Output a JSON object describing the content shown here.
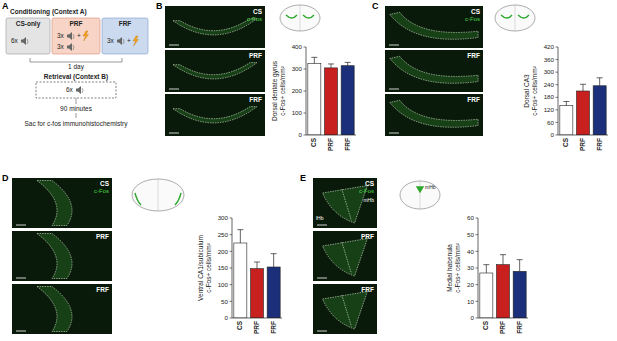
{
  "panel_labels": [
    "A",
    "B",
    "C",
    "D",
    "E"
  ],
  "schematic": {
    "conditioning": "Conditioning (Context A)",
    "groups": [
      {
        "name": "CS-only",
        "rows": [
          {
            "count": "6x"
          }
        ]
      },
      {
        "name": "PRF",
        "rows": [
          {
            "count": "3x",
            "plus": "+"
          },
          {
            "count": "3x"
          }
        ]
      },
      {
        "name": "FRF",
        "rows": [
          {
            "count": "3x",
            "plus": "+"
          }
        ]
      }
    ],
    "interval": "1 day",
    "retrieval": "Retrieval (Context B)",
    "retrieval_trials": "6x",
    "delay": "90 minutes",
    "sac": "Sac for c-fos immunohistochemistry"
  },
  "micrographs": [
    {
      "labels": [
        "CS",
        "PRF",
        "FRF"
      ],
      "stain": "c-Fos"
    },
    {
      "labels": [
        "CS",
        "FRF",
        "FRF"
      ],
      "stain": "c-Fos"
    },
    {
      "labels": [
        "CS",
        "PRF",
        "FRF"
      ],
      "stain": "c-Fos"
    },
    {
      "labels": [
        "CS",
        "PRF",
        "FRF"
      ],
      "stain": "c-Fos",
      "regions": [
        "mHb",
        "lHb"
      ],
      "icon_label": "mHb"
    }
  ],
  "chart_data": [
    {
      "type": "bar",
      "y_label": [
        "Dorsal dentate gyrus",
        "c-Fos+ cells/mm²"
      ],
      "categories": [
        "CS",
        "PRF",
        "FRF"
      ],
      "values": [
        325,
        305,
        315
      ],
      "errors": [
        28,
        18,
        15
      ],
      "colors": [
        "#ffffff",
        "#c8201e",
        "#1b2f7a"
      ],
      "ylim": [
        0,
        400
      ],
      "yticks": [
        0,
        100,
        200,
        300,
        400
      ]
    },
    {
      "type": "bar",
      "y_label": [
        "Dorsal CA3",
        "c-Fos+ cells/mm²"
      ],
      "categories": [
        "CS",
        "PRF",
        "FRF"
      ],
      "values": [
        140,
        210,
        235
      ],
      "errors": [
        20,
        32,
        38
      ],
      "colors": [
        "#ffffff",
        "#c8201e",
        "#1b2f7a"
      ],
      "ylim": [
        0,
        420
      ],
      "yticks": [
        0,
        60,
        120,
        180,
        240,
        300,
        360,
        420
      ]
    },
    {
      "type": "bar",
      "y_label": [
        "Ventral CA1/subiculum",
        "c-Fos+ cells/mm²"
      ],
      "categories": [
        "CS",
        "PRF",
        "FRF"
      ],
      "values": [
        225,
        148,
        153
      ],
      "errors": [
        40,
        20,
        40
      ],
      "colors": [
        "#ffffff",
        "#c8201e",
        "#1b2f7a"
      ],
      "ylim": [
        0,
        300
      ],
      "yticks": [
        0,
        50,
        100,
        150,
        200,
        250,
        300
      ]
    },
    {
      "type": "bar",
      "y_label": [
        "Medial habenula",
        "c-Fos+ cells/mm²"
      ],
      "categories": [
        "CS",
        "PRF",
        "FRF"
      ],
      "values": [
        27,
        32,
        28
      ],
      "errors": [
        5,
        6,
        7
      ],
      "colors": [
        "#ffffff",
        "#c8201e",
        "#1b2f7a"
      ],
      "ylim": [
        0,
        60
      ],
      "yticks": [
        0,
        10,
        20,
        30,
        40,
        50,
        60
      ]
    }
  ]
}
